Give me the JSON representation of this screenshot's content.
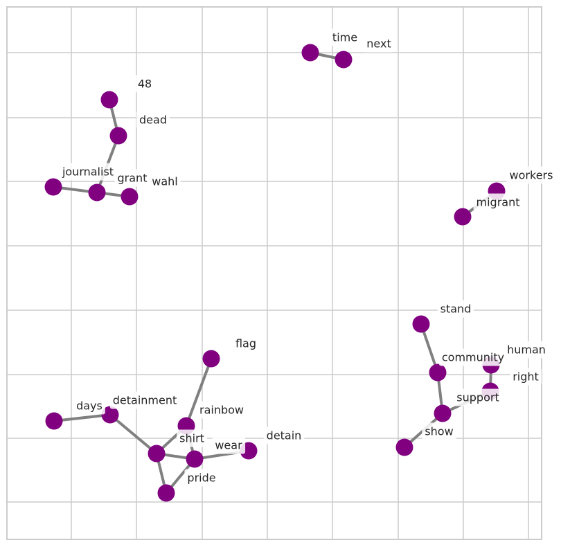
{
  "graph": {
    "colors": {
      "node": "#800080",
      "edge": "#808080",
      "grid": "#cccccc",
      "frame": "#cccccc",
      "background": "#ffffff",
      "label": "#262626"
    },
    "nodes": [
      {
        "id": "48",
        "label": "48"
      },
      {
        "id": "dead",
        "label": "dead"
      },
      {
        "id": "grant",
        "label": "grant"
      },
      {
        "id": "journalist",
        "label": "journalist"
      },
      {
        "id": "wahl",
        "label": "wahl"
      },
      {
        "id": "journalist2",
        "label": ""
      },
      {
        "id": "time",
        "label": "time"
      },
      {
        "id": "next",
        "label": "next"
      },
      {
        "id": "workers",
        "label": "workers"
      },
      {
        "id": "migrant",
        "label": "migrant"
      },
      {
        "id": "stand",
        "label": "stand"
      },
      {
        "id": "community",
        "label": "community"
      },
      {
        "id": "human",
        "label": "human"
      },
      {
        "id": "right",
        "label": "right"
      },
      {
        "id": "support",
        "label": "support"
      },
      {
        "id": "show",
        "label": "show"
      },
      {
        "id": "flag",
        "label": "flag"
      },
      {
        "id": "rainbow",
        "label": "rainbow"
      },
      {
        "id": "shirt",
        "label": "shirt"
      },
      {
        "id": "wear",
        "label": "wear"
      },
      {
        "id": "detain",
        "label": "detain"
      },
      {
        "id": "pride",
        "label": "pride"
      },
      {
        "id": "days",
        "label": "days"
      },
      {
        "id": "detainment",
        "label": "detainment"
      },
      {
        "id": "hub",
        "label": ""
      },
      {
        "id": "bottom",
        "label": ""
      }
    ],
    "edges": [
      [
        "48",
        "dead"
      ],
      [
        "dead",
        "grant"
      ],
      [
        "journalist",
        "grant"
      ],
      [
        "grant",
        "wahl"
      ],
      [
        "time",
        "next"
      ],
      [
        "workers",
        "migrant"
      ],
      [
        "stand",
        "community"
      ],
      [
        "community",
        "support"
      ],
      [
        "human",
        "right"
      ],
      [
        "right",
        "support"
      ],
      [
        "support",
        "show"
      ],
      [
        "flag",
        "rainbow"
      ],
      [
        "rainbow",
        "hub"
      ],
      [
        "rainbow",
        "pride"
      ],
      [
        "hub",
        "pride"
      ],
      [
        "pride",
        "detain"
      ],
      [
        "pride",
        "bottom"
      ],
      [
        "hub",
        "bottom"
      ],
      [
        "days",
        "detainment"
      ],
      [
        "detainment",
        "hub"
      ]
    ]
  }
}
